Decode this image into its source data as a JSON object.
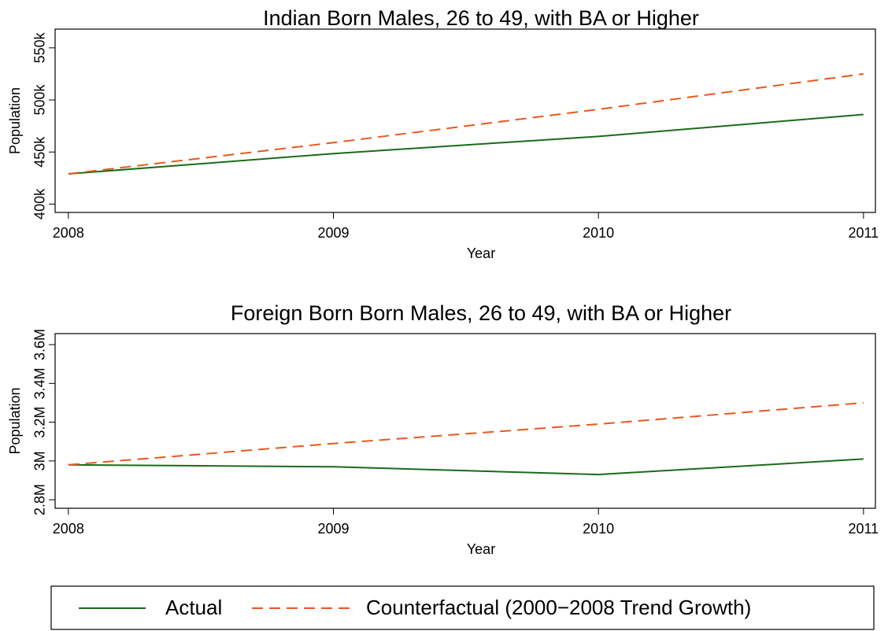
{
  "chart_data": [
    {
      "type": "line",
      "title": "Indian Born Males, 26 to 49, with BA or Higher",
      "x_label": "Year",
      "y_label": "Population",
      "x": [
        2008,
        2009,
        2010,
        2011
      ],
      "xlim": [
        2007.95,
        2011.045
      ],
      "xticks": [
        2008,
        2009,
        2010,
        2011
      ],
      "ylim": [
        392000,
        568000
      ],
      "yticks": [
        {
          "value": 400000,
          "label": "400k"
        },
        {
          "value": 450000,
          "label": "450k"
        },
        {
          "value": 500000,
          "label": "500k"
        },
        {
          "value": 550000,
          "label": "550k"
        }
      ],
      "series": [
        {
          "name": "Actual",
          "color": "#1a6b1a",
          "dash": "solid",
          "values": [
            429000,
            448500,
            465000,
            486000
          ]
        },
        {
          "name": "Counterfactual (2000−2008 Trend Growth)",
          "color": "#e8581e",
          "dash": "dashed",
          "values": [
            429000,
            459000,
            491000,
            525000
          ]
        }
      ]
    },
    {
      "type": "line",
      "title": "Foreign Born Born Males, 26 to 49, with BA or Higher",
      "x_label": "Year",
      "y_label": "Population",
      "x": [
        2008,
        2009,
        2010,
        2011
      ],
      "xlim": [
        2007.95,
        2011.045
      ],
      "xticks": [
        2008,
        2009,
        2010,
        2011
      ],
      "ylim": [
        2756000,
        3657000
      ],
      "yticks": [
        {
          "value": 2800000,
          "label": "2.8M"
        },
        {
          "value": 3000000,
          "label": "3M"
        },
        {
          "value": 3200000,
          "label": "3.2M"
        },
        {
          "value": 3400000,
          "label": "3.4M"
        },
        {
          "value": 3600000,
          "label": "3.6M"
        }
      ],
      "series": [
        {
          "name": "Actual",
          "color": "#1a6b1a",
          "dash": "solid",
          "values": [
            2980000,
            2970000,
            2930000,
            3010000
          ]
        },
        {
          "name": "Counterfactual (2000−2008 Trend Growth)",
          "color": "#e8581e",
          "dash": "dashed",
          "values": [
            2980000,
            3090000,
            3190000,
            3300000
          ]
        }
      ]
    }
  ]
}
